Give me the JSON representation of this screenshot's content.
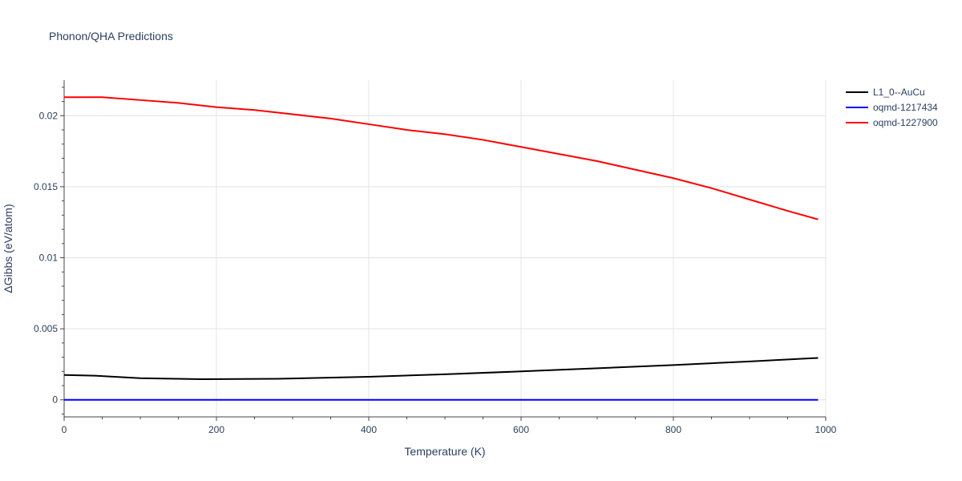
{
  "chart_data": {
    "type": "line",
    "title": "Phonon/QHA Predictions",
    "xlabel": "Temperature (K)",
    "ylabel": "ΔGibbs (eV/atom)",
    "xlim": [
      0,
      1000
    ],
    "ylim": [
      -0.0012,
      0.0225
    ],
    "xticks": [
      0,
      200,
      400,
      600,
      800,
      1000
    ],
    "xtick_labels": [
      "0",
      "200",
      "400",
      "600",
      "800",
      "1000"
    ],
    "yticks": [
      0,
      0.005,
      0.01,
      0.015,
      0.02
    ],
    "ytick_labels": [
      "0",
      "0.005",
      "0.01",
      "0.015",
      "0.02"
    ],
    "grid": true,
    "legend_position": "top-right",
    "series": [
      {
        "name": "L1_0--AuCu",
        "color": "#000000",
        "x": [
          0,
          40,
          100,
          180,
          280,
          400,
          500,
          600,
          700,
          800,
          900,
          990
        ],
        "y": [
          0.00175,
          0.0017,
          0.00152,
          0.00145,
          0.00148,
          0.00162,
          0.0018,
          0.002,
          0.00222,
          0.00245,
          0.0027,
          0.00295
        ]
      },
      {
        "name": "oqmd-1217434",
        "color": "#0000ff",
        "x": [
          0,
          200,
          400,
          600,
          800,
          990
        ],
        "y": [
          0,
          0,
          0,
          0,
          0,
          0
        ]
      },
      {
        "name": "oqmd-1227900",
        "color": "#ff0000",
        "x": [
          0,
          50,
          100,
          150,
          200,
          250,
          300,
          350,
          400,
          450,
          500,
          550,
          600,
          650,
          700,
          750,
          800,
          850,
          900,
          950,
          990
        ],
        "y": [
          0.0213,
          0.0213,
          0.0211,
          0.0209,
          0.0206,
          0.0204,
          0.0201,
          0.0198,
          0.0194,
          0.019,
          0.0187,
          0.0183,
          0.0178,
          0.0173,
          0.0168,
          0.0162,
          0.0156,
          0.0149,
          0.0141,
          0.0133,
          0.0127
        ]
      }
    ]
  }
}
